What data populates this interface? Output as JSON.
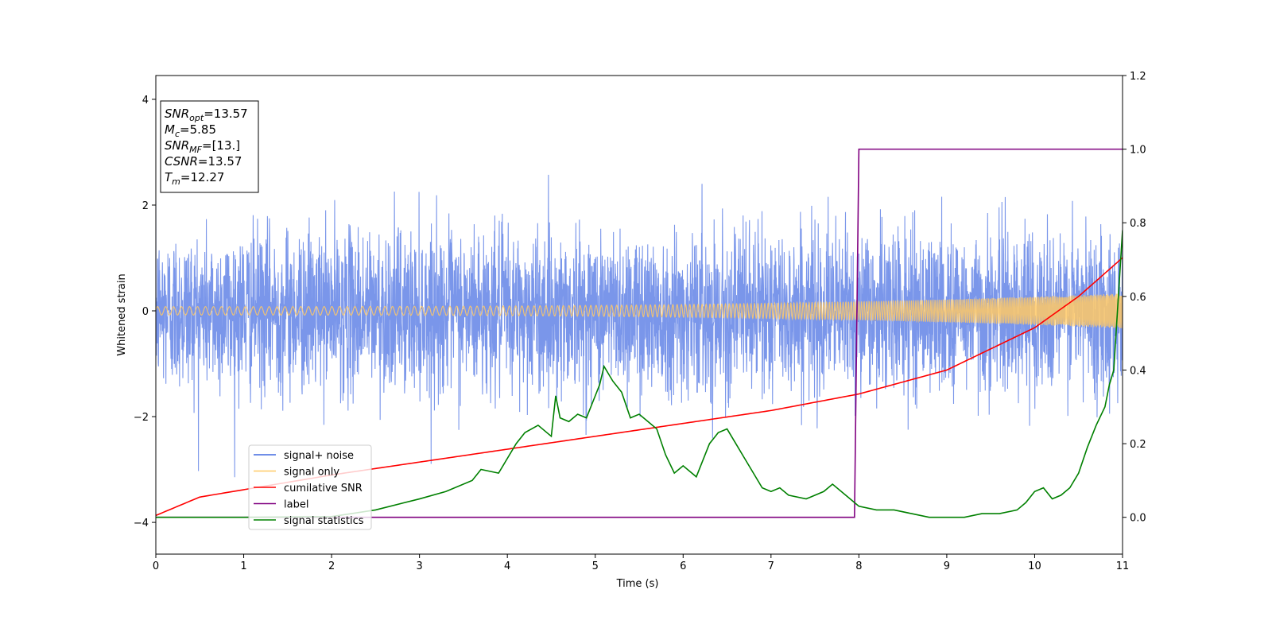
{
  "chart_data": {
    "type": "line",
    "xlabel": "Time (s)",
    "ylabel": "Whitened strain",
    "xlim": [
      0,
      11
    ],
    "ylim_left": [
      -4.6,
      4.45
    ],
    "ylim_right": [
      -0.1,
      1.2
    ],
    "x_ticks": [
      0,
      1,
      2,
      3,
      4,
      5,
      6,
      7,
      8,
      9,
      10,
      11
    ],
    "y_ticks_left": [
      -4,
      -2,
      0,
      2,
      4
    ],
    "y_ticks_right": [
      "0.0",
      "0.2",
      "0.4",
      "0.6",
      "0.8",
      "1.0",
      "1.2"
    ],
    "grid": false,
    "legend_position": "lower-left",
    "info_box": {
      "lines": [
        {
          "sym": "SNR",
          "sub": "opt",
          "value": "=13.57"
        },
        {
          "sym": "M",
          "sub": "c",
          "value": "=5.85"
        },
        {
          "sym": "SNR",
          "sub": "MF",
          "value": "=[13.]"
        },
        {
          "sym": "CSNR",
          "sub": "",
          "value": "=13.57"
        },
        {
          "sym": "T",
          "sub": "m",
          "value": "=12.27"
        }
      ]
    },
    "series": [
      {
        "name": "signal+ noise",
        "color": "#4169e1",
        "axis": "left",
        "description": "noisy whitened strain, roughly ±1.5 with spikes to about ±3.5"
      },
      {
        "name": "signal only",
        "color": "#ffc966",
        "axis": "left",
        "description": "chirp; amplitude grows from about 0.08 at t=0 to about 0.33 at t=11"
      },
      {
        "name": "cumilative SNR",
        "color": "#ff0000",
        "axis": "right",
        "x": [
          0,
          0.5,
          1,
          2,
          3,
          4,
          5,
          6,
          7,
          8,
          9,
          10,
          10.5,
          11
        ],
        "y": [
          0.005,
          0.055,
          0.075,
          0.115,
          0.15,
          0.185,
          0.22,
          0.255,
          0.29,
          0.335,
          0.4,
          0.515,
          0.6,
          0.705
        ]
      },
      {
        "name": "label",
        "color": "#800080",
        "axis": "right",
        "x": [
          0,
          7.95,
          8.0,
          11
        ],
        "y": [
          0,
          0,
          1,
          1
        ]
      },
      {
        "name": "signal statistics",
        "color": "#008000",
        "axis": "right",
        "x": [
          0,
          1,
          2,
          2.5,
          3,
          3.3,
          3.6,
          3.7,
          3.9,
          4.0,
          4.1,
          4.2,
          4.35,
          4.5,
          4.55,
          4.6,
          4.7,
          4.8,
          4.9,
          5.0,
          5.05,
          5.1,
          5.2,
          5.3,
          5.4,
          5.5,
          5.6,
          5.7,
          5.8,
          5.9,
          6.0,
          6.15,
          6.3,
          6.4,
          6.5,
          6.6,
          6.7,
          6.8,
          6.9,
          7.0,
          7.1,
          7.2,
          7.4,
          7.6,
          7.7,
          7.9,
          8.0,
          8.2,
          8.4,
          8.6,
          8.8,
          9.0,
          9.2,
          9.4,
          9.6,
          9.8,
          9.9,
          10.0,
          10.1,
          10.2,
          10.3,
          10.4,
          10.5,
          10.6,
          10.7,
          10.8,
          10.85,
          10.9,
          11
        ],
        "y": [
          0,
          0,
          0.002,
          0.02,
          0.05,
          0.07,
          0.1,
          0.13,
          0.12,
          0.16,
          0.2,
          0.23,
          0.25,
          0.22,
          0.33,
          0.27,
          0.26,
          0.28,
          0.27,
          0.33,
          0.36,
          0.41,
          0.37,
          0.34,
          0.27,
          0.28,
          0.26,
          0.24,
          0.17,
          0.12,
          0.14,
          0.11,
          0.2,
          0.23,
          0.24,
          0.2,
          0.16,
          0.12,
          0.08,
          0.07,
          0.08,
          0.06,
          0.05,
          0.07,
          0.09,
          0.05,
          0.03,
          0.02,
          0.02,
          0.01,
          0.0,
          0.0,
          0.0,
          0.01,
          0.01,
          0.02,
          0.04,
          0.07,
          0.08,
          0.05,
          0.06,
          0.08,
          0.12,
          0.19,
          0.25,
          0.3,
          0.36,
          0.4,
          0.78
        ]
      }
    ]
  }
}
